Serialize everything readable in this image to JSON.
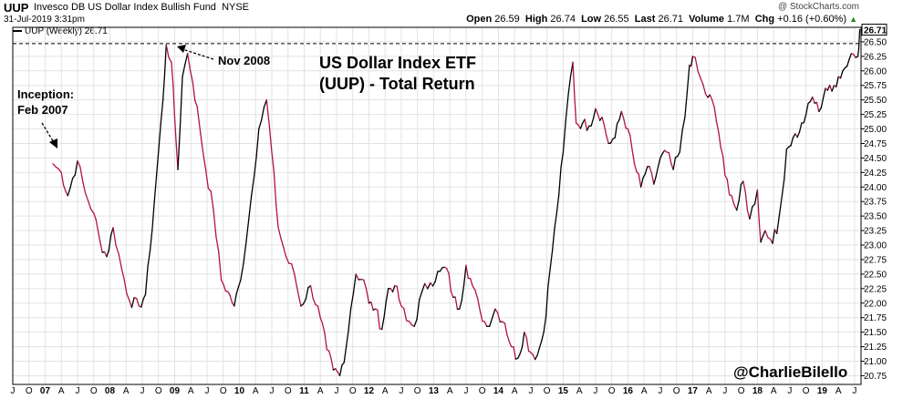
{
  "header": {
    "symbol": "UUP",
    "fund_name": "Invesco DB US Dollar Index Bullish Fund",
    "exchange": "NYSE",
    "date": "31-Jul-2019 3:31pm",
    "copyright": "@ StockCharts.com",
    "open_label": "Open",
    "open": "26.59",
    "high_label": "High",
    "high": "26.74",
    "low_label": "Low",
    "low": "26.55",
    "last_label": "Last",
    "last": "26.71",
    "volume_label": "Volume",
    "volume": "1.7M",
    "chg_label": "Chg",
    "chg": "+0.16 (+0.60%)",
    "chg_arrow": "▲",
    "legend": "UUP (Weekly) 26.71"
  },
  "annotations": {
    "title_line1": "US Dollar Index ETF",
    "title_line2": "(UUP) - Total Return",
    "inception_line1": "Inception:",
    "inception_line2": "Feb 2007",
    "nov2008": "Nov 2008",
    "handle": "@CharlieBilello"
  },
  "colors": {
    "up": "#000000",
    "down": "#b3133b",
    "grid": "#e2e2e2",
    "reference_line": "#000000",
    "last_box": "#000000"
  },
  "chart_data": {
    "type": "line",
    "series": [
      {
        "name": "UUP (Weekly)"
      }
    ],
    "ylim": [
      20.6,
      26.75
    ],
    "yticks": [
      20.75,
      21.0,
      21.25,
      21.5,
      21.75,
      22.0,
      22.25,
      22.5,
      22.75,
      23.0,
      23.25,
      23.5,
      23.75,
      24.0,
      24.25,
      24.5,
      24.75,
      25.0,
      25.25,
      25.5,
      25.75,
      26.0,
      26.25,
      26.5
    ],
    "ytick_labels": [
      "20.75",
      "21.00",
      "21.25",
      "21.50",
      "21.75",
      "22.00",
      "22.25",
      "22.50",
      "22.75",
      "23.00",
      "23.25",
      "23.50",
      "23.75",
      "24.00",
      "24.25",
      "24.50",
      "24.75",
      "25.00",
      "25.25",
      "25.50",
      "25.75",
      "26.00",
      "26.25",
      "26.50"
    ],
    "last_value": 26.71,
    "last_label": "26.71",
    "reference_value": 26.47,
    "xlim": [
      2006.5,
      2019.6
    ],
    "xtick_labels": [
      "J",
      "O",
      "07",
      "A",
      "J",
      "O",
      "08",
      "A",
      "J",
      "O",
      "09",
      "A",
      "J",
      "O",
      "10",
      "A",
      "J",
      "O",
      "11",
      "A",
      "J",
      "O",
      "12",
      "A",
      "J",
      "O",
      "13",
      "A",
      "J",
      "O",
      "14",
      "A",
      "J",
      "O",
      "15",
      "A",
      "J",
      "O",
      "16",
      "A",
      "J",
      "O",
      "17",
      "A",
      "J",
      "O",
      "18",
      "A",
      "J",
      "O",
      "19",
      "A",
      "J"
    ],
    "xtick_values": [
      2006.5,
      2006.75,
      2007.0,
      2007.25,
      2007.5,
      2007.75,
      2008.0,
      2008.25,
      2008.5,
      2008.75,
      2009.0,
      2009.25,
      2009.5,
      2009.75,
      2010.0,
      2010.25,
      2010.5,
      2010.75,
      2011.0,
      2011.25,
      2011.5,
      2011.75,
      2012.0,
      2012.25,
      2012.5,
      2012.75,
      2013.0,
      2013.25,
      2013.5,
      2013.75,
      2014.0,
      2014.25,
      2014.5,
      2014.75,
      2015.0,
      2015.25,
      2015.5,
      2015.75,
      2016.0,
      2016.25,
      2016.5,
      2016.75,
      2017.0,
      2017.25,
      2017.5,
      2017.75,
      2018.0,
      2018.25,
      2018.5,
      2018.75,
      2019.0,
      2019.25,
      2019.5
    ],
    "x": [
      2007.12,
      2007.25,
      2007.35,
      2007.5,
      2007.62,
      2007.75,
      2007.85,
      2007.95,
      2008.05,
      2008.18,
      2008.3,
      2008.45,
      2008.55,
      2008.62,
      2008.72,
      2008.82,
      2008.87,
      2008.95,
      2009.0,
      2009.05,
      2009.12,
      2009.2,
      2009.28,
      2009.38,
      2009.48,
      2009.6,
      2009.72,
      2009.82,
      2009.92,
      2010.02,
      2010.15,
      2010.3,
      2010.42,
      2010.5,
      2010.6,
      2010.72,
      2010.85,
      2010.95,
      2011.1,
      2011.25,
      2011.35,
      2011.45,
      2011.55,
      2011.65,
      2011.72,
      2011.8,
      2011.92,
      2012.0,
      2012.1,
      2012.2,
      2012.3,
      2012.4,
      2012.5,
      2012.58,
      2012.7,
      2012.82,
      2012.95,
      2013.1,
      2013.2,
      2013.3,
      2013.4,
      2013.5,
      2013.6,
      2013.72,
      2013.82,
      2013.95,
      2014.1,
      2014.2,
      2014.3,
      2014.4,
      2014.5,
      2014.6,
      2014.7,
      2014.8,
      2014.9,
      2015.0,
      2015.08,
      2015.15,
      2015.2,
      2015.3,
      2015.4,
      2015.5,
      2015.6,
      2015.7,
      2015.8,
      2015.9,
      2016.0,
      2016.1,
      2016.2,
      2016.3,
      2016.4,
      2016.5,
      2016.6,
      2016.7,
      2016.8,
      2016.88,
      2016.95,
      2017.0,
      2017.08,
      2017.2,
      2017.3,
      2017.4,
      2017.5,
      2017.6,
      2017.68,
      2017.78,
      2017.88,
      2018.0,
      2018.05,
      2018.12,
      2018.2,
      2018.3,
      2018.38,
      2018.45,
      2018.55,
      2018.65,
      2018.75,
      2018.85,
      2018.95,
      2019.05,
      2019.15,
      2019.25,
      2019.35,
      2019.45,
      2019.55,
      2019.58
    ],
    "values": [
      24.4,
      24.25,
      23.85,
      24.45,
      23.9,
      23.55,
      23.05,
      22.8,
      23.3,
      22.6,
      22.05,
      21.95,
      22.15,
      22.9,
      24.2,
      25.5,
      26.45,
      26.15,
      25.2,
      24.3,
      25.9,
      26.3,
      25.8,
      25.1,
      24.3,
      23.6,
      22.4,
      22.2,
      21.95,
      22.4,
      23.5,
      25.0,
      25.5,
      24.6,
      23.3,
      22.8,
      22.5,
      21.95,
      22.3,
      21.75,
      21.2,
      20.85,
      20.75,
      21.25,
      21.9,
      22.5,
      22.4,
      22.0,
      21.9,
      21.55,
      22.25,
      22.3,
      21.95,
      21.7,
      21.6,
      22.2,
      22.35,
      22.55,
      22.6,
      22.1,
      21.9,
      22.65,
      22.3,
      21.85,
      21.6,
      21.9,
      21.65,
      21.25,
      21.05,
      21.5,
      21.15,
      21.1,
      21.5,
      22.6,
      23.55,
      24.6,
      25.6,
      26.15,
      25.1,
      25.1,
      25.05,
      25.35,
      25.2,
      24.75,
      24.85,
      25.3,
      25.0,
      24.4,
      24.0,
      24.35,
      24.05,
      24.5,
      24.6,
      24.3,
      24.6,
      25.2,
      26.1,
      26.25,
      26.0,
      25.6,
      25.5,
      24.95,
      24.2,
      23.85,
      23.6,
      24.1,
      23.45,
      23.95,
      23.05,
      23.25,
      23.1,
      23.2,
      23.85,
      24.65,
      24.85,
      24.95,
      25.25,
      25.55,
      25.3,
      25.7,
      25.65,
      25.9,
      26.05,
      26.3,
      26.25,
      26.71
    ]
  }
}
